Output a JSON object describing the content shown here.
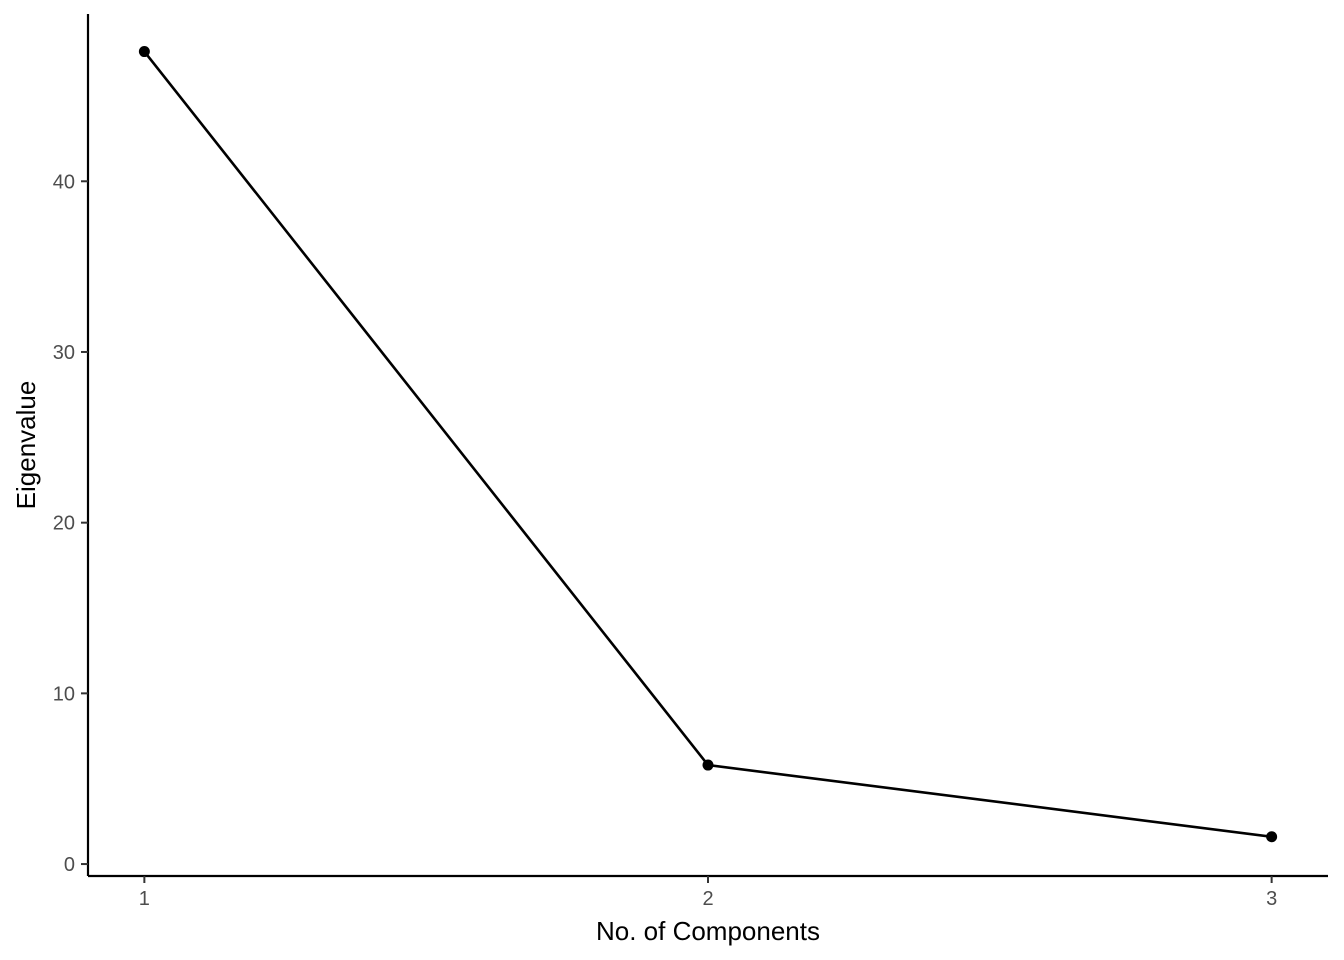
{
  "chart_data": {
    "type": "line",
    "title": "",
    "xlabel": "No. of Components",
    "ylabel": "Eigenvalue",
    "x": [
      1,
      2,
      3
    ],
    "x_tick_labels": [
      "1",
      "2",
      "3"
    ],
    "y_tick_values": [
      0,
      10,
      20,
      30,
      40
    ],
    "y_tick_labels": [
      "0",
      "10",
      "20",
      "30",
      "40"
    ],
    "xlim": [
      0.9,
      3.1
    ],
    "ylim": [
      -0.7,
      49.8
    ],
    "grid": false,
    "series": [
      {
        "values": [
          47.6,
          5.8,
          1.6
        ]
      }
    ],
    "colors": {
      "line": "#000000",
      "point": "#000000",
      "tick_text": "#4d4d4d"
    }
  }
}
